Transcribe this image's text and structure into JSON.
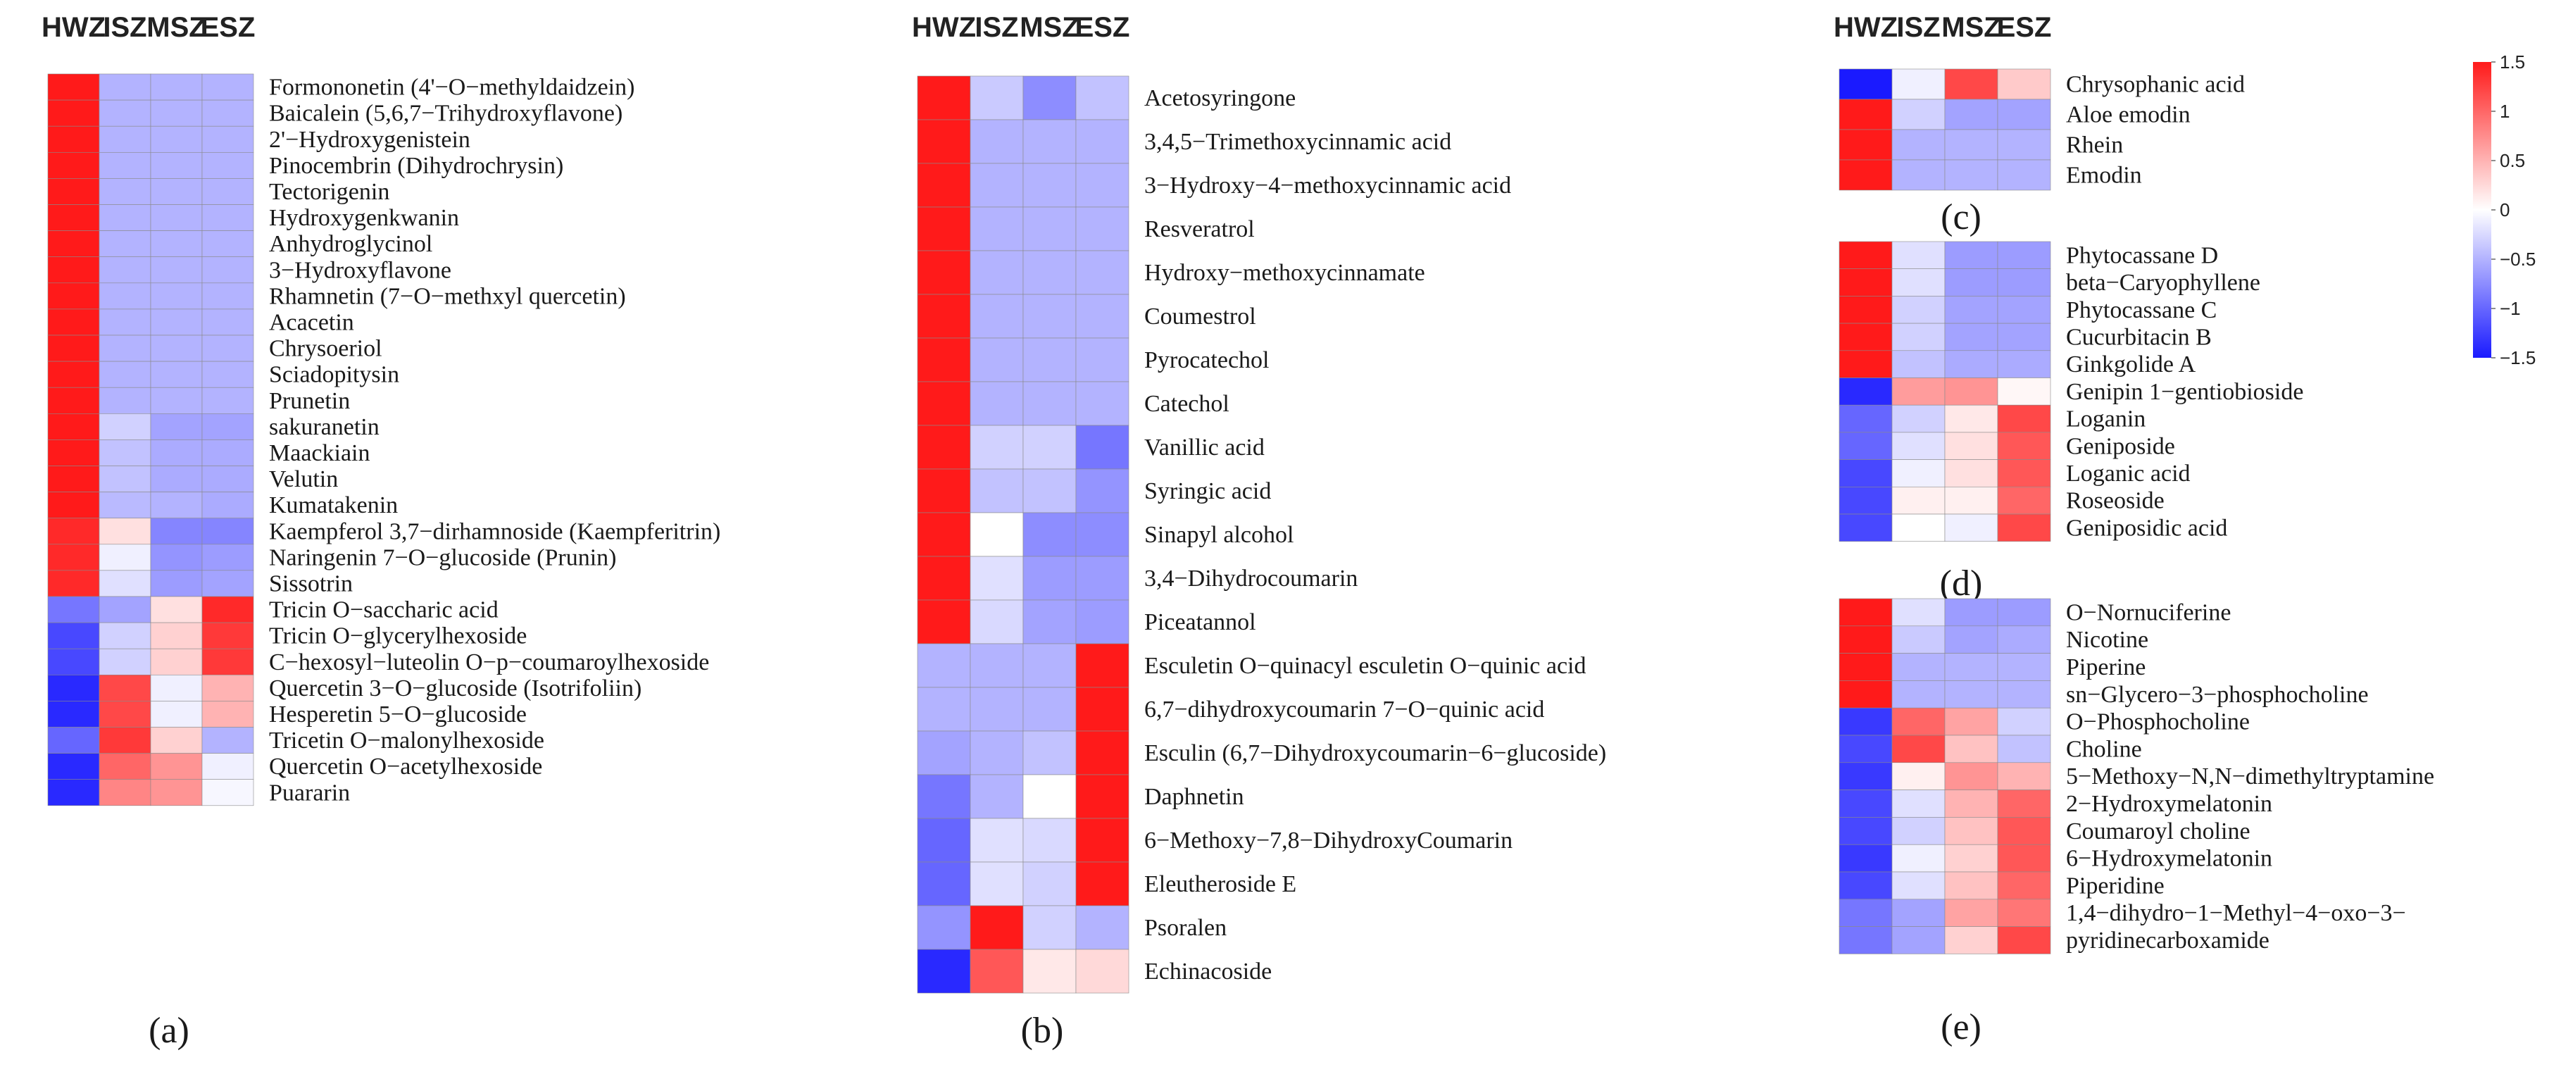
{
  "chart_data": {
    "type": "heatmap",
    "title": "",
    "columns": [
      "HWZ",
      "ISZ",
      "MSZ",
      "ESZ"
    ],
    "color_scale": {
      "min": -1.5,
      "max": 1.5,
      "low": "#1a1aff",
      "mid": "#ffffff",
      "high": "#ff1a1a"
    },
    "colorbar": {
      "ticks": [
        1.5,
        1,
        0.5,
        0,
        -0.5,
        -1,
        -1.5
      ],
      "tick_labels": [
        "1.5",
        "1",
        "0.5",
        "0",
        "−0.5",
        "−1",
        "−1.5"
      ]
    },
    "panels": [
      {
        "tag": "(a)",
        "rows": [
          {
            "label": "Formononetin (4'−O−methyldaidzein)",
            "values": [
              1.5,
              -0.5,
              -0.5,
              -0.5
            ]
          },
          {
            "label": "Baicalein (5,6,7−Trihydroxyflavone)",
            "values": [
              1.5,
              -0.5,
              -0.5,
              -0.5
            ]
          },
          {
            "label": "2'−Hydroxygenistein",
            "values": [
              1.5,
              -0.5,
              -0.5,
              -0.5
            ]
          },
          {
            "label": "Pinocembrin (Dihydrochrysin)",
            "values": [
              1.5,
              -0.5,
              -0.5,
              -0.5
            ]
          },
          {
            "label": "Tectorigenin",
            "values": [
              1.5,
              -0.5,
              -0.5,
              -0.5
            ]
          },
          {
            "label": "Hydroxygenkwanin",
            "values": [
              1.5,
              -0.5,
              -0.5,
              -0.5
            ]
          },
          {
            "label": "Anhydroglycinol",
            "values": [
              1.5,
              -0.5,
              -0.5,
              -0.5
            ]
          },
          {
            "label": "3−Hydroxyflavone",
            "values": [
              1.5,
              -0.5,
              -0.5,
              -0.5
            ]
          },
          {
            "label": "Rhamnetin (7−O−methxyl quercetin)",
            "values": [
              1.5,
              -0.5,
              -0.5,
              -0.5
            ]
          },
          {
            "label": "Acacetin",
            "values": [
              1.5,
              -0.5,
              -0.5,
              -0.5
            ]
          },
          {
            "label": "Chrysoeriol",
            "values": [
              1.5,
              -0.5,
              -0.5,
              -0.5
            ]
          },
          {
            "label": "Sciadopitysin",
            "values": [
              1.5,
              -0.5,
              -0.5,
              -0.5
            ]
          },
          {
            "label": "Prunetin",
            "values": [
              1.5,
              -0.5,
              -0.5,
              -0.5
            ]
          },
          {
            "label": "sakuranetin",
            "values": [
              1.5,
              -0.3,
              -0.6,
              -0.6
            ]
          },
          {
            "label": "Maackiain",
            "values": [
              1.5,
              -0.4,
              -0.55,
              -0.55
            ]
          },
          {
            "label": "Velutin",
            "values": [
              1.5,
              -0.4,
              -0.55,
              -0.55
            ]
          },
          {
            "label": "Kumatakenin",
            "values": [
              1.5,
              -0.45,
              -0.5,
              -0.55
            ]
          },
          {
            "label": "Kaempferol 3,7−dirhamnoside (Kaempferitrin)",
            "values": [
              1.4,
              0.2,
              -0.8,
              -0.8
            ]
          },
          {
            "label": "Naringenin 7−O−glucoside (Prunin)",
            "values": [
              1.4,
              -0.1,
              -0.7,
              -0.65
            ]
          },
          {
            "label": "Sissotrin",
            "values": [
              1.4,
              -0.2,
              -0.65,
              -0.6
            ]
          },
          {
            "label": "Tricin O−saccharic acid",
            "values": [
              -0.9,
              -0.6,
              0.2,
              1.4
            ]
          },
          {
            "label": "Tricin O−glycerylhexoside",
            "values": [
              -1.2,
              -0.3,
              0.3,
              1.3
            ]
          },
          {
            "label": "C−hexosyl−luteolin O−p−coumaroylhexoside",
            "values": [
              -1.2,
              -0.3,
              0.3,
              1.3
            ]
          },
          {
            "label": "Quercetin 3−O−glucoside (Isotrifoliin)",
            "values": [
              -1.4,
              1.2,
              -0.1,
              0.5
            ]
          },
          {
            "label": "Hesperetin 5−O−glucoside",
            "values": [
              -1.4,
              1.2,
              -0.1,
              0.5
            ]
          },
          {
            "label": "Tricetin O−malonylhexoside",
            "values": [
              -1.0,
              1.3,
              0.3,
              -0.5
            ]
          },
          {
            "label": "Quercetin O−acetylhexoside",
            "values": [
              -1.4,
              1.0,
              0.7,
              -0.1
            ]
          },
          {
            "label": "Puararin",
            "values": [
              -1.4,
              0.8,
              0.7,
              -0.05
            ]
          }
        ]
      },
      {
        "tag": "(b)",
        "rows": [
          {
            "label": "Acetosyringone",
            "values": [
              1.5,
              -0.35,
              -0.75,
              -0.4
            ]
          },
          {
            "label": "3,4,5−Trimethoxycinnamic acid",
            "values": [
              1.5,
              -0.5,
              -0.5,
              -0.5
            ]
          },
          {
            "label": "3−Hydroxy−4−methoxycinnamic acid",
            "values": [
              1.5,
              -0.5,
              -0.5,
              -0.5
            ]
          },
          {
            "label": "Resveratrol",
            "values": [
              1.5,
              -0.5,
              -0.5,
              -0.5
            ]
          },
          {
            "label": "Hydroxy−methoxycinnamate",
            "values": [
              1.5,
              -0.5,
              -0.5,
              -0.5
            ]
          },
          {
            "label": "Coumestrol",
            "values": [
              1.5,
              -0.5,
              -0.5,
              -0.5
            ]
          },
          {
            "label": "Pyrocatechol",
            "values": [
              1.5,
              -0.5,
              -0.5,
              -0.5
            ]
          },
          {
            "label": "Catechol",
            "values": [
              1.5,
              -0.5,
              -0.5,
              -0.5
            ]
          },
          {
            "label": "Vanillic acid",
            "values": [
              1.5,
              -0.3,
              -0.3,
              -0.9
            ]
          },
          {
            "label": "Syringic acid",
            "values": [
              1.5,
              -0.4,
              -0.4,
              -0.7
            ]
          },
          {
            "label": "Sinapyl alcohol",
            "values": [
              1.5,
              0.0,
              -0.75,
              -0.75
            ]
          },
          {
            "label": "3,4−Dihydrocoumarin",
            "values": [
              1.5,
              -0.2,
              -0.65,
              -0.65
            ]
          },
          {
            "label": "Piceatannol",
            "values": [
              1.5,
              -0.25,
              -0.6,
              -0.65
            ]
          },
          {
            "label": "Esculetin O−quinacyl esculetin O−quinic acid",
            "values": [
              -0.5,
              -0.5,
              -0.5,
              1.5
            ]
          },
          {
            "label": "6,7−dihydroxycoumarin 7−O−quinic acid",
            "values": [
              -0.5,
              -0.5,
              -0.5,
              1.5
            ]
          },
          {
            "label": "Esculin (6,7−Dihydroxycoumarin−6−glucoside)",
            "values": [
              -0.6,
              -0.5,
              -0.4,
              1.5
            ]
          },
          {
            "label": "Daphnetin",
            "values": [
              -0.9,
              -0.5,
              0.0,
              1.5
            ]
          },
          {
            "label": "6−Methoxy−7,8−DihydroxyCoumarin",
            "values": [
              -1.0,
              -0.2,
              -0.25,
              1.5
            ]
          },
          {
            "label": "Eleutheroside E",
            "values": [
              -1.0,
              -0.2,
              -0.3,
              1.5
            ]
          },
          {
            "label": "Psoralen",
            "values": [
              -0.7,
              1.5,
              -0.3,
              -0.5
            ]
          },
          {
            "label": "Echinacoside",
            "values": [
              -1.4,
              1.1,
              0.15,
              0.25
            ]
          }
        ]
      },
      {
        "tag": "(c)",
        "rows": [
          {
            "label": "Chrysophanic acid",
            "values": [
              -1.5,
              -0.1,
              1.2,
              0.35
            ]
          },
          {
            "label": "Aloe emodin",
            "values": [
              1.5,
              -0.3,
              -0.6,
              -0.6
            ]
          },
          {
            "label": "Rhein",
            "values": [
              1.5,
              -0.5,
              -0.5,
              -0.5
            ]
          },
          {
            "label": "Emodin",
            "values": [
              1.5,
              -0.5,
              -0.5,
              -0.5
            ]
          }
        ]
      },
      {
        "tag": "(d)",
        "rows": [
          {
            "label": "Phytocassane D",
            "values": [
              1.5,
              -0.2,
              -0.65,
              -0.65
            ]
          },
          {
            "label": "beta−Caryophyllene",
            "values": [
              1.5,
              -0.2,
              -0.65,
              -0.65
            ]
          },
          {
            "label": "Phytocassane C",
            "values": [
              1.5,
              -0.3,
              -0.6,
              -0.6
            ]
          },
          {
            "label": "Cucurbitacin B",
            "values": [
              1.5,
              -0.3,
              -0.6,
              -0.6
            ]
          },
          {
            "label": "Ginkgolide A",
            "values": [
              1.5,
              -0.4,
              -0.55,
              -0.55
            ]
          },
          {
            "label": "Genipin 1−gentiobioside",
            "values": [
              -1.4,
              0.65,
              0.7,
              0.05
            ]
          },
          {
            "label": "Loganin",
            "values": [
              -1.0,
              -0.3,
              0.15,
              1.2
            ]
          },
          {
            "label": "Geniposide",
            "values": [
              -1.0,
              -0.2,
              0.2,
              1.1
            ]
          },
          {
            "label": "Loganic acid",
            "values": [
              -1.2,
              -0.1,
              0.2,
              1.1
            ]
          },
          {
            "label": "Roseoside",
            "values": [
              -1.2,
              0.1,
              0.1,
              1.0
            ]
          },
          {
            "label": "Geniposidic acid",
            "values": [
              -1.2,
              0.0,
              -0.1,
              1.2
            ]
          }
        ]
      },
      {
        "tag": "(e)",
        "rows": [
          {
            "label": "O−Nornuciferine",
            "values": [
              1.5,
              -0.2,
              -0.65,
              -0.65
            ]
          },
          {
            "label": "Nicotine",
            "values": [
              1.5,
              -0.35,
              -0.6,
              -0.55
            ]
          },
          {
            "label": "Piperine",
            "values": [
              1.5,
              -0.5,
              -0.5,
              -0.5
            ]
          },
          {
            "label": "sn−Glycero−3−phosphocholine",
            "values": [
              1.5,
              -0.5,
              -0.5,
              -0.5
            ]
          },
          {
            "label": "O−Phosphocholine",
            "values": [
              -1.3,
              1.0,
              0.6,
              -0.3
            ]
          },
          {
            "label": "Choline",
            "values": [
              -1.2,
              1.2,
              0.4,
              -0.4
            ]
          },
          {
            "label": "5−Methoxy−N,N−dimethyltryptamine",
            "values": [
              -1.3,
              0.1,
              0.7,
              0.5
            ]
          },
          {
            "label": "2−Hydroxymelatonin",
            "values": [
              -1.2,
              -0.2,
              0.5,
              1.0
            ]
          },
          {
            "label": "Coumaroyl choline",
            "values": [
              -1.2,
              -0.3,
              0.4,
              1.1
            ]
          },
          {
            "label": "6−Hydroxymelatonin",
            "values": [
              -1.3,
              -0.1,
              0.3,
              1.1
            ]
          },
          {
            "label": "Piperidine",
            "values": [
              -1.2,
              -0.2,
              0.4,
              1.0
            ]
          },
          {
            "label": "1,4−dihydro−1−Methyl−4−oxo−3−",
            "values": [
              -0.9,
              -0.6,
              0.6,
              0.9
            ]
          },
          {
            "label": "pyridinecarboxamide",
            "values": [
              -0.9,
              -0.6,
              0.3,
              1.2
            ]
          }
        ]
      }
    ]
  }
}
